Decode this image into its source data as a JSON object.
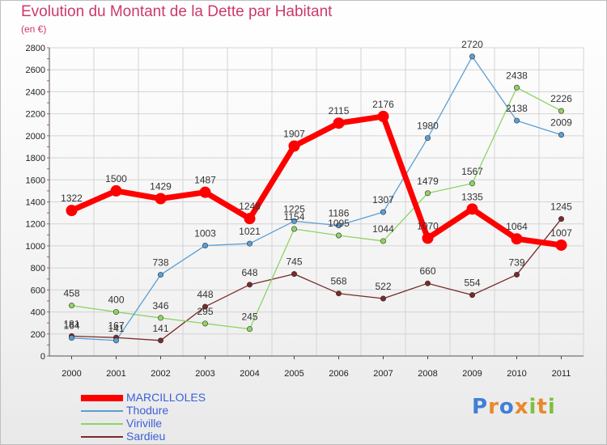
{
  "title": "Evolution du Montant de la Dette par Habitant",
  "subtitle": "(en €)",
  "logo": {
    "text": "Proxiti",
    "letters": [
      {
        "ch": "P",
        "color": "#3f7fd8"
      },
      {
        "ch": "r",
        "color": "#e8892a"
      },
      {
        "ch": "o",
        "color": "#3f7fd8"
      },
      {
        "ch": "x",
        "color": "#e8892a"
      },
      {
        "ch": "i",
        "color": "#7fbf3f"
      },
      {
        "ch": "t",
        "color": "#e8892a"
      },
      {
        "ch": "i",
        "color": "#7fbf3f"
      }
    ]
  },
  "chart_data": {
    "type": "line",
    "title": "Evolution du Montant de la Dette par Habitant",
    "ylabel": "(en €)",
    "xlabel": "",
    "x": [
      "2000",
      "2001",
      "2002",
      "2003",
      "2004",
      "2005",
      "2006",
      "2007",
      "2008",
      "2009",
      "2010",
      "2011"
    ],
    "ylim": [
      0,
      2800
    ],
    "yticks": [
      0,
      200,
      400,
      600,
      800,
      1000,
      1200,
      1400,
      1600,
      1800,
      2000,
      2200,
      2400,
      2600,
      2800
    ],
    "grid": true,
    "legend_position": "bottom-left",
    "series": [
      {
        "name": "MARCILLOLES",
        "color": "#ff0000",
        "values": [
          1322,
          1500,
          1429,
          1487,
          1248,
          1907,
          2115,
          2176,
          1070,
          1335,
          1064,
          1007
        ],
        "labels": [
          "1322",
          "1500",
          "1429",
          "1487",
          "1248",
          "1907",
          "2115",
          "2176",
          "1070",
          "1335",
          "1064",
          "1007"
        ]
      },
      {
        "name": "Thodure",
        "color": "#5a9fd4",
        "values": [
          164,
          141,
          738,
          1003,
          1021,
          1225,
          1186,
          1307,
          1980,
          2720,
          2138,
          2009
        ],
        "labels": [
          "164",
          "141",
          "738",
          "1003",
          "1021",
          "1225",
          "1186",
          "1307",
          "1980",
          "2720",
          "2138",
          "2009"
        ]
      },
      {
        "name": "Viriville",
        "color": "#8ed462",
        "values": [
          458,
          400,
          346,
          295,
          245,
          1154,
          1095,
          1044,
          1479,
          1567,
          2438,
          2226
        ],
        "labels": [
          "458",
          "400",
          "346",
          "295",
          "245",
          "1154",
          "1095",
          "1044",
          "1479",
          "1567",
          "2438",
          "2226"
        ]
      },
      {
        "name": "Sardieu",
        "color": "#7a2a2a",
        "values": [
          181,
          167,
          141,
          448,
          648,
          745,
          568,
          522,
          660,
          554,
          739,
          1245
        ],
        "labels": [
          "181",
          "167",
          "141",
          "448",
          "648",
          "745",
          "568",
          "522",
          "660",
          "554",
          "739",
          "1245"
        ]
      }
    ]
  }
}
